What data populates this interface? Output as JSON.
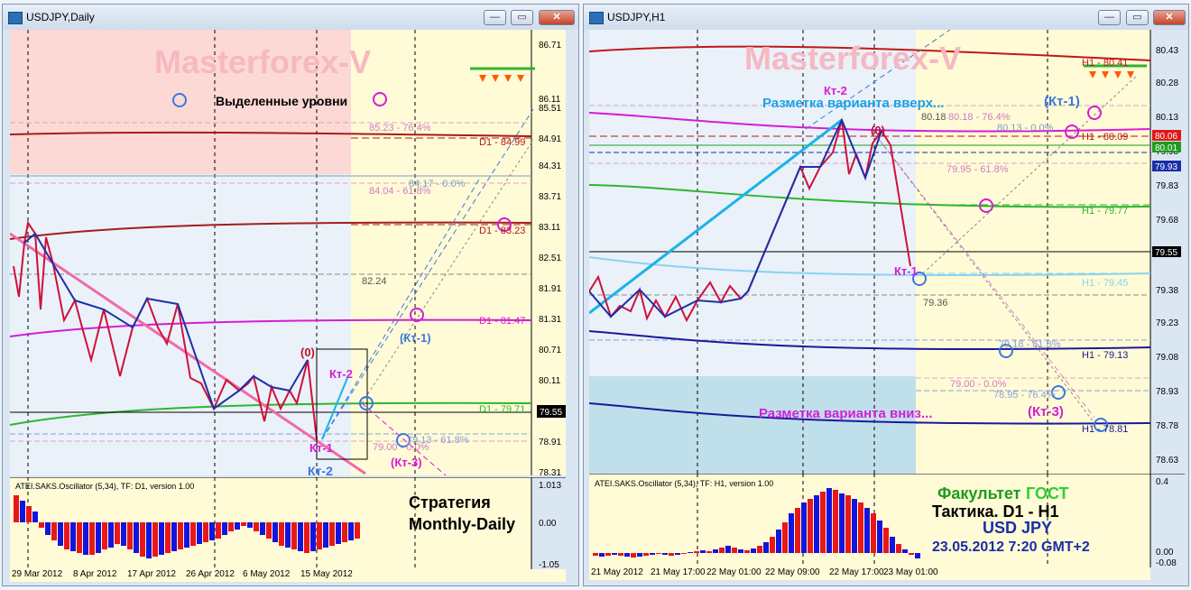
{
  "left": {
    "title": "USDJPY,Daily",
    "watermark": "Masterforex-V",
    "legend_text": "Выделенные уровни",
    "price_ticks": [
      "86.71",
      "86.11",
      "85.51",
      "84.91",
      "84.31",
      "83.71",
      "83.11",
      "82.51",
      "81.91",
      "81.31",
      "80.71",
      "80.11",
      "79.55",
      "78.91",
      "78.31"
    ],
    "current_price": "79.55",
    "levels": [
      "85.23 - 76.4%",
      "D1 - 84.99",
      "84.17 - 0.0%",
      "84.04 - 61.8%",
      "D1 - 83.23",
      "82.24",
      "D1 - 81.47",
      "D1 - 79.71",
      "79.13 - 61.8%",
      "79.00 - 0.0%"
    ],
    "wave_labels": [
      "(0)",
      "Кт-2",
      "Кт-1",
      "Кт-2",
      "(Кт-1)",
      "(Кт-3)"
    ],
    "osc_title": "ATEI.SAKS.Oscillator (5,34), TF: D1, version 1.00",
    "osc_ticks": [
      "1.013",
      "0.00",
      "-1.05"
    ],
    "strategy": [
      "Стратегия",
      "Monthly-Daily"
    ],
    "time_labels": [
      "29 Mar 2012",
      "8 Apr 2012",
      "17 Apr 2012",
      "26 Apr 2012",
      "6 May 2012",
      "15 May 2012"
    ]
  },
  "right": {
    "title": "USDJPY,H1",
    "watermark": "Masterforex-V",
    "up_label": "Разметка варианта вверх...",
    "down_label": "Разметка варианта вниз...",
    "price_ticks": [
      "80.43",
      "80.28",
      "80.13",
      "79.98",
      "79.83",
      "79.68",
      "79.53",
      "79.38",
      "79.23",
      "79.08",
      "78.93",
      "78.78",
      "78.63"
    ],
    "price_boxes": [
      {
        "text": "80.06",
        "color": "#e01818"
      },
      {
        "text": "80.01",
        "color": "#1f9b1f"
      },
      {
        "text": "79.93",
        "color": "#1a2ea8"
      },
      {
        "text": "79.55",
        "color": "#000000"
      }
    ],
    "levels": [
      "H1 - 80.41",
      "80.18",
      "80.18 - 76.4%",
      "80.13 - 0.0%",
      "H1 - 80.09",
      "79.95 - 61.8%",
      "H1 - 79.77",
      "H1 - 79.45",
      "79.36",
      "79.18 - 61.8%",
      "H1 - 79.13",
      "79.00 - 0.0%",
      "78.95 - 76.4%",
      "H1 - 78.81"
    ],
    "wave_labels": [
      "Кт-2",
      "(0)",
      "Кт-1",
      "(Кт-1)",
      "(Кт-3)"
    ],
    "osc_title": "ATEI.SAKS.Oscillator (5,34), TF: H1, version 1.00",
    "osc_ticks": [
      "0.4",
      "0.00",
      "-0.08"
    ],
    "info": [
      "Факультет",
      "ГОСТ",
      "Тактика. D1 - H1",
      "USD JPY",
      "23.05.2012 7:20 GMT+2"
    ],
    "time_labels": [
      "21 May 2012",
      "21 May 17:00",
      "22 May 01:00",
      "22 May 09:00",
      "22 May 17:00",
      "23 May 01:00"
    ]
  },
  "colors": {
    "watermark": "#f6b8c2",
    "bg": "#fffbd6",
    "red_level": "#b01818",
    "magenta": "#e010d0",
    "green": "#22bb22",
    "navy": "#1a1a9a",
    "cyan": "#19b4e8"
  }
}
